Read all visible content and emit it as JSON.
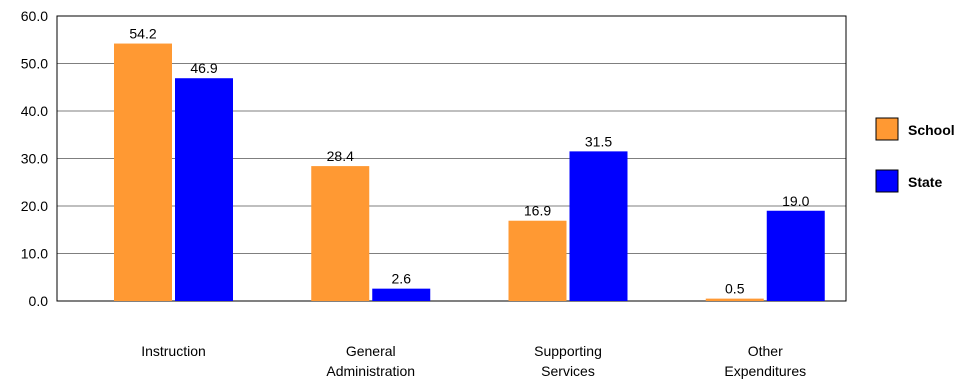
{
  "chart_data": {
    "type": "bar",
    "categories": [
      [
        "Instruction"
      ],
      [
        "General",
        "Administration"
      ],
      [
        "Supporting",
        "Services"
      ],
      [
        "Other",
        "Expenditures"
      ]
    ],
    "series": [
      {
        "name": "School",
        "values": [
          54.2,
          28.4,
          16.9,
          0.5
        ],
        "color": "#FF9933"
      },
      {
        "name": "State",
        "values": [
          46.9,
          2.6,
          31.5,
          19.0
        ],
        "color": "#0000FF"
      }
    ],
    "ylim": [
      0,
      60
    ],
    "yticks": [
      "0.0",
      "10.0",
      "20.0",
      "30.0",
      "40.0",
      "50.0",
      "60.0"
    ],
    "data_labels": [
      [
        "54.2",
        "28.4",
        "16.9",
        "0.5"
      ],
      [
        "46.9",
        "2.6",
        "31.5",
        "19.0"
      ]
    ],
    "grid": true,
    "legend_position": "right"
  }
}
